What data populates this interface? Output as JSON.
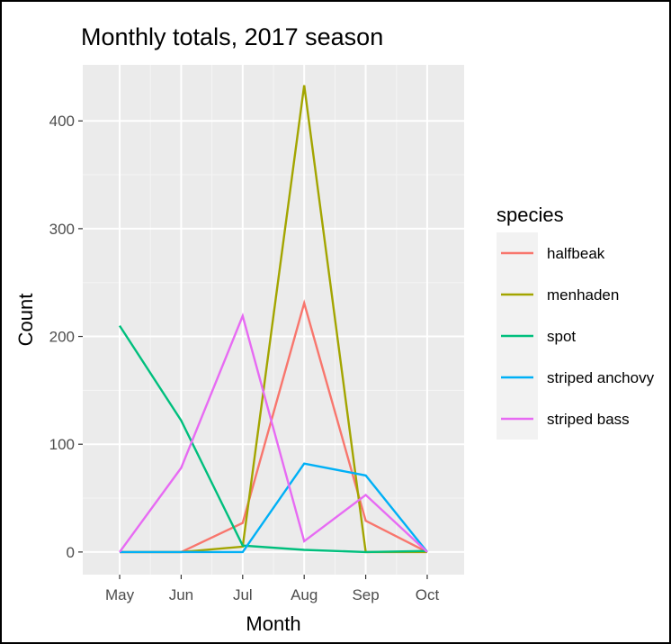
{
  "chart_data": {
    "type": "line",
    "title": "Monthly totals, 2017 season",
    "xlabel": "Month",
    "ylabel": "Count",
    "categories": [
      "May",
      "Jun",
      "Jul",
      "Aug",
      "Sep",
      "Oct"
    ],
    "ylim": [
      -21,
      452
    ],
    "yticks": [
      0,
      100,
      200,
      300,
      400
    ],
    "grid": true,
    "legend_title": "species",
    "legend_position": "right",
    "series": [
      {
        "name": "halfbeak",
        "color": "#F8766D",
        "values": [
          0,
          0,
          27,
          231,
          29,
          0
        ]
      },
      {
        "name": "menhaden",
        "color": "#A3A500",
        "values": [
          0,
          0,
          5,
          433,
          0,
          0
        ]
      },
      {
        "name": "spot",
        "color": "#00BF7D",
        "values": [
          210,
          122,
          6,
          2,
          0,
          1
        ]
      },
      {
        "name": "striped anchovy",
        "color": "#00B0F6",
        "values": [
          0,
          0,
          0,
          82,
          71,
          0
        ]
      },
      {
        "name": "striped bass",
        "color": "#E76BF3",
        "values": [
          0,
          78,
          219,
          10,
          53,
          0
        ]
      }
    ]
  }
}
